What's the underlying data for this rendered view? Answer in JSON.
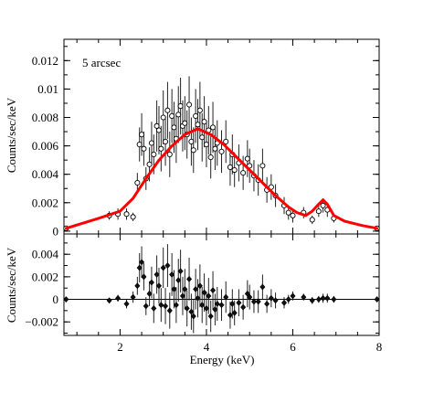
{
  "chart_data": [
    {
      "type": "scatter",
      "panel": "top",
      "annotation": "5 arcsec",
      "xlabel": "",
      "ylabel": "Counts/sec/keV",
      "xlim": [
        0.7,
        8.0
      ],
      "ylim": [
        -0.0002,
        0.0135
      ],
      "x_ticks": [
        2,
        4,
        6,
        8
      ],
      "y_ticks": [
        0,
        0.002,
        0.004,
        0.006,
        0.008,
        0.01,
        0.012
      ],
      "y_tick_labels": [
        "0",
        "0.002",
        "0.004",
        "0.006",
        "0.008",
        "0.01",
        "0.012"
      ],
      "series": [
        {
          "points": [
            [
              0.75,
              0.0002,
              0.0001
            ],
            [
              1.75,
              0.0011,
              0.0003
            ],
            [
              1.95,
              0.0012,
              0.0004
            ],
            [
              2.15,
              0.0012,
              0.0004
            ],
            [
              2.3,
              0.001,
              0.0003
            ],
            [
              2.4,
              0.0034,
              0.0007
            ],
            [
              2.45,
              0.0061,
              0.0012
            ],
            [
              2.5,
              0.0068,
              0.0015
            ],
            [
              2.55,
              0.0058,
              0.0012
            ],
            [
              2.6,
              0.0037,
              0.0008
            ],
            [
              2.68,
              0.0047,
              0.0012
            ],
            [
              2.73,
              0.0062,
              0.0015
            ],
            [
              2.78,
              0.0054,
              0.0014
            ],
            [
              2.85,
              0.0074,
              0.0018
            ],
            [
              2.9,
              0.0071,
              0.0017
            ],
            [
              2.95,
              0.0058,
              0.0016
            ],
            [
              3.0,
              0.008,
              0.0019
            ],
            [
              3.05,
              0.0063,
              0.0017
            ],
            [
              3.1,
              0.0085,
              0.002
            ],
            [
              3.15,
              0.0054,
              0.0016
            ],
            [
              3.2,
              0.0081,
              0.0019
            ],
            [
              3.25,
              0.0073,
              0.0018
            ],
            [
              3.3,
              0.0065,
              0.0017
            ],
            [
              3.35,
              0.0082,
              0.002
            ],
            [
              3.4,
              0.0088,
              0.002
            ],
            [
              3.45,
              0.0074,
              0.0018
            ],
            [
              3.5,
              0.0076,
              0.0019
            ],
            [
              3.55,
              0.0068,
              0.0017
            ],
            [
              3.6,
              0.0089,
              0.002
            ],
            [
              3.65,
              0.0063,
              0.0017
            ],
            [
              3.7,
              0.0057,
              0.0016
            ],
            [
              3.75,
              0.0081,
              0.0019
            ],
            [
              3.8,
              0.0075,
              0.0018
            ],
            [
              3.85,
              0.0085,
              0.002
            ],
            [
              3.9,
              0.0066,
              0.0017
            ],
            [
              3.95,
              0.0077,
              0.0018
            ],
            [
              4.0,
              0.0061,
              0.0016
            ],
            [
              4.05,
              0.0071,
              0.0017
            ],
            [
              4.1,
              0.0052,
              0.0015
            ],
            [
              4.15,
              0.0073,
              0.0018
            ],
            [
              4.2,
              0.0058,
              0.0015
            ],
            [
              4.25,
              0.0062,
              0.0016
            ],
            [
              4.35,
              0.0056,
              0.0015
            ],
            [
              4.45,
              0.0063,
              0.0015
            ],
            [
              4.55,
              0.0045,
              0.0013
            ],
            [
              4.6,
              0.0054,
              0.0014
            ],
            [
              4.65,
              0.0043,
              0.0012
            ],
            [
              4.75,
              0.0048,
              0.0013
            ],
            [
              4.85,
              0.0041,
              0.0012
            ],
            [
              4.95,
              0.0051,
              0.0013
            ],
            [
              5.0,
              0.0046,
              0.0012
            ],
            [
              5.1,
              0.0039,
              0.0011
            ],
            [
              5.2,
              0.0036,
              0.0011
            ],
            [
              5.3,
              0.0046,
              0.0012
            ],
            [
              5.4,
              0.0029,
              0.0009
            ],
            [
              5.5,
              0.0031,
              0.0009
            ],
            [
              5.6,
              0.0025,
              0.0008
            ],
            [
              5.8,
              0.0018,
              0.0006
            ],
            [
              5.9,
              0.0013,
              0.0005
            ],
            [
              6.0,
              0.0011,
              0.0005
            ],
            [
              6.25,
              0.0013,
              0.0004
            ],
            [
              6.45,
              0.0008,
              0.0003
            ],
            [
              6.6,
              0.0014,
              0.0004
            ],
            [
              6.7,
              0.0018,
              0.0005
            ],
            [
              6.8,
              0.0015,
              0.0005
            ],
            [
              6.95,
              0.0009,
              0.0003
            ],
            [
              7.95,
              0.0002,
              0.0001
            ]
          ]
        }
      ],
      "model_curve": {
        "color": "#ff0000",
        "points": [
          [
            0.75,
            0.0002
          ],
          [
            1.5,
            0.0009
          ],
          [
            2.0,
            0.0014
          ],
          [
            2.3,
            0.0023
          ],
          [
            2.6,
            0.0037
          ],
          [
            2.9,
            0.005
          ],
          [
            3.2,
            0.006
          ],
          [
            3.5,
            0.0068
          ],
          [
            3.8,
            0.0072
          ],
          [
            4.1,
            0.0068
          ],
          [
            4.4,
            0.0061
          ],
          [
            4.7,
            0.0052
          ],
          [
            5.0,
            0.0043
          ],
          [
            5.3,
            0.0034
          ],
          [
            5.6,
            0.0025
          ],
          [
            5.9,
            0.0017
          ],
          [
            6.1,
            0.0013
          ],
          [
            6.3,
            0.0011
          ],
          [
            6.45,
            0.0014
          ],
          [
            6.6,
            0.0019
          ],
          [
            6.7,
            0.0022
          ],
          [
            6.8,
            0.0019
          ],
          [
            6.95,
            0.0011
          ],
          [
            7.2,
            0.0007
          ],
          [
            7.6,
            0.0004
          ],
          [
            7.95,
            0.0002
          ]
        ]
      }
    },
    {
      "type": "scatter",
      "panel": "bottom",
      "xlabel": "Energy (keV)",
      "ylabel": "Counts/sec/keV",
      "xlim": [
        0.7,
        8.0
      ],
      "ylim": [
        -0.0032,
        0.0058
      ],
      "x_ticks": [
        2,
        4,
        6,
        8
      ],
      "x_tick_labels": [
        "2",
        "4",
        "6",
        "8"
      ],
      "y_ticks": [
        -0.002,
        0,
        0.002,
        0.004
      ],
      "y_tick_labels": [
        "−0.002",
        "0",
        "0.002",
        "0.004"
      ],
      "series": [
        {
          "points": [
            [
              0.75,
              0.0,
              0.0001
            ],
            [
              1.75,
              -0.0001,
              0.0002
            ],
            [
              1.95,
              0.0001,
              0.0003
            ],
            [
              2.15,
              -0.0004,
              0.0004
            ],
            [
              2.3,
              0.0002,
              0.0005
            ],
            [
              2.4,
              0.0012,
              0.0008
            ],
            [
              2.45,
              0.0028,
              0.0013
            ],
            [
              2.5,
              0.0033,
              0.0014
            ],
            [
              2.55,
              0.002,
              0.0012
            ],
            [
              2.6,
              -0.0006,
              0.0008
            ],
            [
              2.68,
              0.0005,
              0.0011
            ],
            [
              2.73,
              0.0015,
              0.0014
            ],
            [
              2.78,
              -0.0008,
              0.0013
            ],
            [
              2.85,
              0.0022,
              0.0017
            ],
            [
              2.9,
              0.0012,
              0.0016
            ],
            [
              2.95,
              -0.0005,
              0.0015
            ],
            [
              3.0,
              0.0028,
              0.0018
            ],
            [
              3.05,
              -0.0006,
              0.0016
            ],
            [
              3.1,
              0.003,
              0.0019
            ],
            [
              3.15,
              -0.001,
              0.0016
            ],
            [
              3.2,
              0.0022,
              0.0019
            ],
            [
              3.25,
              0.0009,
              0.0017
            ],
            [
              3.3,
              -0.0005,
              0.0016
            ],
            [
              3.35,
              0.0017,
              0.0019
            ],
            [
              3.4,
              0.0025,
              0.0019
            ],
            [
              3.45,
              0.0003,
              0.0017
            ],
            [
              3.5,
              0.0009,
              0.0018
            ],
            [
              3.55,
              -0.0008,
              0.0016
            ],
            [
              3.6,
              0.0018,
              0.0019
            ],
            [
              3.65,
              -0.0011,
              0.0016
            ],
            [
              3.7,
              -0.0015,
              0.0015
            ],
            [
              3.75,
              0.0009,
              0.0018
            ],
            [
              3.8,
              0.0001,
              0.0017
            ],
            [
              3.85,
              0.0012,
              0.0019
            ],
            [
              3.9,
              -0.0005,
              0.0016
            ],
            [
              3.95,
              0.0006,
              0.0017
            ],
            [
              4.0,
              -0.0008,
              0.0015
            ],
            [
              4.05,
              0.0003,
              0.0016
            ],
            [
              4.1,
              -0.0015,
              0.0014
            ],
            [
              4.15,
              0.0008,
              0.0017
            ],
            [
              4.2,
              -0.0009,
              0.0014
            ],
            [
              4.25,
              -0.0004,
              0.0015
            ],
            [
              4.35,
              -0.0005,
              0.0014
            ],
            [
              4.45,
              0.0002,
              0.0014
            ],
            [
              4.55,
              -0.0014,
              0.0012
            ],
            [
              4.6,
              -0.0004,
              0.0013
            ],
            [
              4.65,
              -0.0012,
              0.0011
            ],
            [
              4.75,
              -0.0003,
              0.0012
            ],
            [
              4.85,
              -0.0007,
              0.0011
            ],
            [
              4.95,
              0.0005,
              0.0012
            ],
            [
              5.0,
              0.0002,
              0.0011
            ],
            [
              5.1,
              -0.0002,
              0.001
            ],
            [
              5.2,
              -0.0002,
              0.001
            ],
            [
              5.3,
              0.0011,
              0.0011
            ],
            [
              5.4,
              -0.0004,
              0.0008
            ],
            [
              5.5,
              0.0001,
              0.0008
            ],
            [
              5.6,
              -0.0001,
              0.0007
            ],
            [
              5.8,
              -0.0003,
              0.0005
            ],
            [
              5.9,
              0.0,
              0.0004
            ],
            [
              6.0,
              0.0003,
              0.0004
            ],
            [
              6.25,
              0.0002,
              0.0003
            ],
            [
              6.45,
              -0.0001,
              0.0003
            ],
            [
              6.6,
              0.0,
              0.0003
            ],
            [
              6.7,
              0.0001,
              0.0004
            ],
            [
              6.8,
              0.0001,
              0.0004
            ],
            [
              6.95,
              0.0,
              0.0003
            ],
            [
              7.95,
              0.0,
              0.0001
            ]
          ]
        }
      ],
      "zero_line": 0
    }
  ]
}
